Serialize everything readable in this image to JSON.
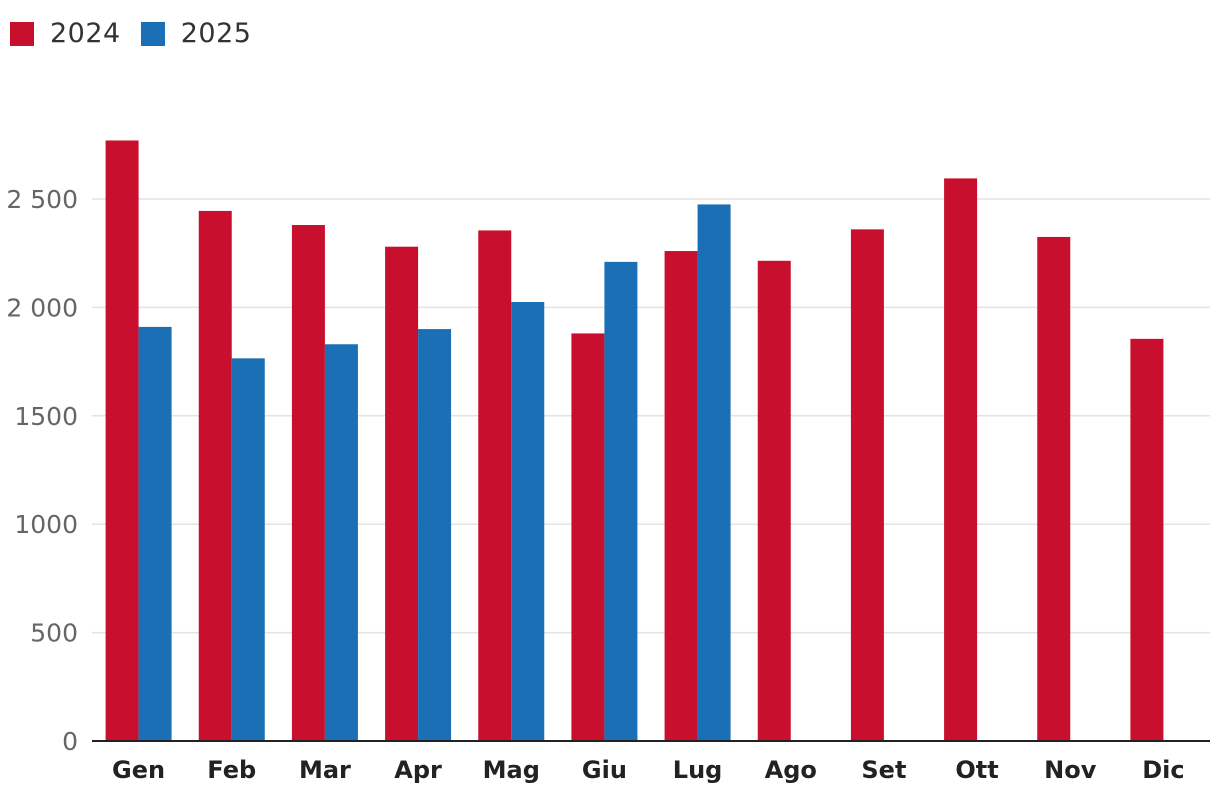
{
  "legend": [
    {
      "label": "2024",
      "color": "#c8102e"
    },
    {
      "label": "2025",
      "color": "#1a6fb5"
    }
  ],
  "chart_data": {
    "type": "bar",
    "title": "",
    "xlabel": "",
    "ylabel": "",
    "categories": [
      "Gen",
      "Feb",
      "Mar",
      "Apr",
      "Mag",
      "Giu",
      "Lug",
      "Ago",
      "Set",
      "Ott",
      "Nov",
      "Dic"
    ],
    "series": [
      {
        "name": "2024",
        "color": "#c8102e",
        "values": [
          2770,
          2445,
          2380,
          2280,
          2355,
          1880,
          2260,
          2215,
          2360,
          2595,
          2325,
          1855
        ]
      },
      {
        "name": "2025",
        "color": "#1a6fb5",
        "values": [
          1910,
          1765,
          1830,
          1900,
          2025,
          2210,
          2475,
          null,
          null,
          null,
          null,
          null
        ]
      }
    ],
    "ylim": [
      0,
      2800
    ],
    "yticks": [
      0,
      500,
      1000,
      1500,
      2000,
      2500
    ],
    "ytick_labels": [
      "0",
      "500",
      "1000",
      "1500",
      "2 000",
      "2 500"
    ],
    "grid": true,
    "legend_position": "top-left"
  }
}
